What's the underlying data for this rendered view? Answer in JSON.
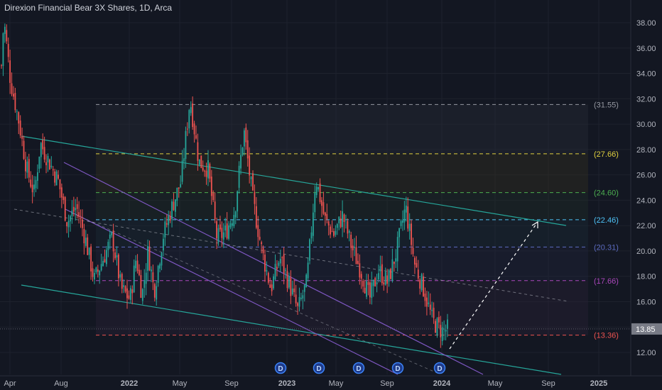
{
  "title": "Direxion Financial Bear 3X Shares, 1D, Arca",
  "colors": {
    "background": "#131722",
    "grid": "#1e222d",
    "up": "#26a69a",
    "down": "#ef5350",
    "channel_green": "#26a69a",
    "channel_purple": "#7e57c2",
    "price_badge": "#787b86"
  },
  "chart_data": {
    "type": "candlestick",
    "title": "Direxion Financial Bear 3X Shares, 1D, Arca",
    "x_ticks": [
      "Apr",
      "Aug",
      "2022",
      "May",
      "Sep",
      "2023",
      "May",
      "Sep",
      "2024",
      "May",
      "Sep",
      "2025"
    ],
    "y_ticks": [
      "12.00",
      "14.00",
      "16.00",
      "18.00",
      "20.00",
      "22.00",
      "24.00",
      "26.00",
      "28.00",
      "30.00",
      "32.00",
      "34.00",
      "36.00",
      "38.00"
    ],
    "ylim": [
      12,
      39.2
    ],
    "last_price": "13.85",
    "price_path": [
      [
        0,
        34.6
      ],
      [
        0.004,
        38.3
      ],
      [
        0.015,
        33.5
      ],
      [
        0.03,
        30.0
      ],
      [
        0.042,
        26.5
      ],
      [
        0.055,
        24.5
      ],
      [
        0.065,
        28.5
      ],
      [
        0.08,
        27.0
      ],
      [
        0.095,
        25.5
      ],
      [
        0.11,
        22.3
      ],
      [
        0.125,
        23.5
      ],
      [
        0.14,
        21.0
      ],
      [
        0.155,
        17.7
      ],
      [
        0.17,
        19.4
      ],
      [
        0.185,
        21.1
      ],
      [
        0.2,
        17.0
      ],
      [
        0.215,
        16.2
      ],
      [
        0.225,
        19.5
      ],
      [
        0.235,
        16.5
      ],
      [
        0.245,
        20.0
      ],
      [
        0.255,
        16.8
      ],
      [
        0.27,
        21.2
      ],
      [
        0.285,
        23.5
      ],
      [
        0.3,
        25.5
      ],
      [
        0.315,
        32.0
      ],
      [
        0.33,
        27.0
      ],
      [
        0.345,
        26.5
      ],
      [
        0.36,
        21.0
      ],
      [
        0.375,
        21.5
      ],
      [
        0.39,
        23.3
      ],
      [
        0.405,
        29.5
      ],
      [
        0.42,
        24.0
      ],
      [
        0.435,
        20.0
      ],
      [
        0.45,
        17.0
      ],
      [
        0.465,
        19.5
      ],
      [
        0.48,
        17.5
      ],
      [
        0.495,
        15.3
      ],
      [
        0.51,
        17.5
      ],
      [
        0.525,
        25.8
      ],
      [
        0.54,
        22.5
      ],
      [
        0.555,
        21.3
      ],
      [
        0.57,
        22.8
      ],
      [
        0.585,
        20.3
      ],
      [
        0.6,
        18.5
      ],
      [
        0.615,
        16.2
      ],
      [
        0.63,
        18.5
      ],
      [
        0.645,
        17.5
      ],
      [
        0.66,
        20.0
      ],
      [
        0.675,
        23.5
      ],
      [
        0.69,
        19.0
      ],
      [
        0.705,
        17.0
      ],
      [
        0.72,
        14.5
      ],
      [
        0.735,
        13.7
      ],
      [
        0.745,
        13.85
      ]
    ],
    "fib_levels": [
      {
        "label": "(31.55)",
        "value": 31.55,
        "color": "#9598a1"
      },
      {
        "label": "(27.66)",
        "value": 27.66,
        "color": "#e0d03f"
      },
      {
        "label": "(24.60)",
        "value": 24.6,
        "color": "#4caf50"
      },
      {
        "label": "(22.46)",
        "value": 22.46,
        "color": "#4fc3f7"
      },
      {
        "label": "(20.31)",
        "value": 20.31,
        "color": "#5c6bc0"
      },
      {
        "label": "(17.66)",
        "value": 17.66,
        "color": "#ab47bc"
      },
      {
        "label": "(13.36)",
        "value": 13.36,
        "color": "#ef5350"
      }
    ],
    "dividend_marker": "D"
  }
}
